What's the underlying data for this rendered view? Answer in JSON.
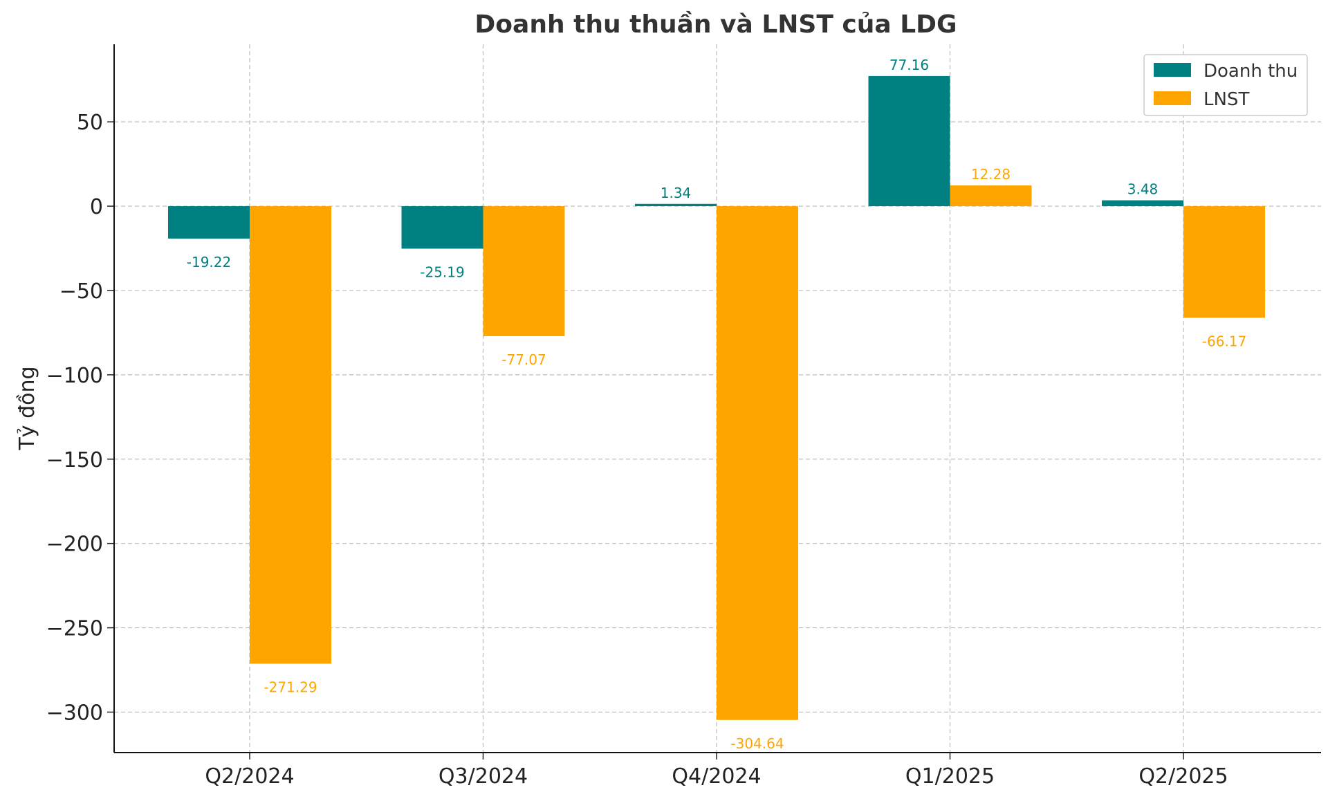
{
  "chart_data": {
    "type": "bar",
    "title": "Doanh thu thuần và LNST của LDG",
    "xlabel": "",
    "ylabel": "Tỷ đồng",
    "categories": [
      "Q2/2024",
      "Q3/2024",
      "Q4/2024",
      "Q1/2025",
      "Q2/2025"
    ],
    "series": [
      {
        "name": "Doanh thu",
        "color": "#008080",
        "values": [
          -19.22,
          -25.19,
          1.34,
          77.16,
          3.48
        ]
      },
      {
        "name": "LNST",
        "color": "#FFA500",
        "values": [
          -271.29,
          -77.07,
          -304.64,
          12.28,
          -66.17
        ]
      }
    ],
    "ylim": [
      -324,
      96
    ],
    "yticks": [
      50,
      0,
      -50,
      -100,
      -150,
      -200,
      -250,
      -300
    ],
    "ytick_labels": [
      "50",
      "0",
      "−50",
      "−100",
      "−150",
      "−200",
      "−250",
      "−300"
    ],
    "grid": true,
    "legend_position": "top-right"
  }
}
